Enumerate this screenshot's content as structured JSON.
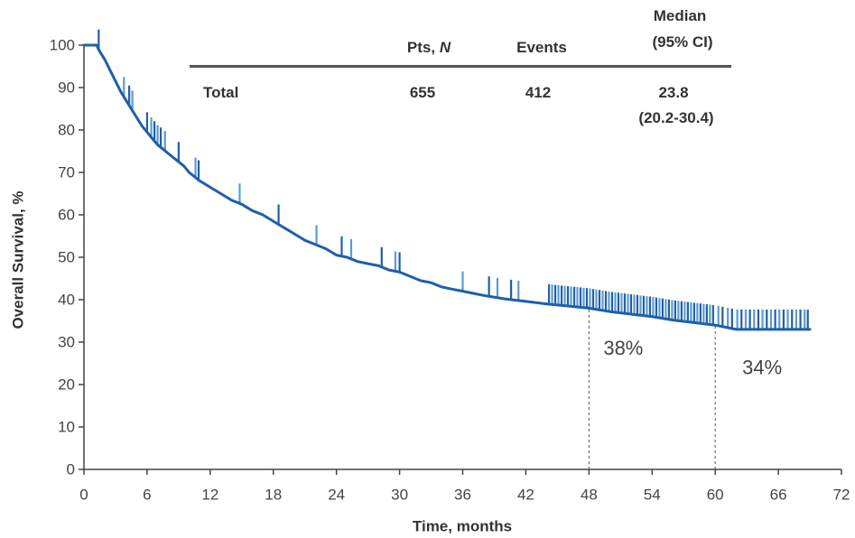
{
  "chart_data": {
    "type": "line",
    "xlabel": "Time, months",
    "ylabel": "Overall Survival, %",
    "xlim": [
      0,
      72
    ],
    "ylim": [
      0,
      100
    ],
    "xticks": [
      0,
      6,
      12,
      18,
      24,
      30,
      36,
      42,
      48,
      54,
      60,
      66,
      72
    ],
    "yticks": [
      0,
      10,
      20,
      30,
      40,
      50,
      60,
      70,
      80,
      90,
      100
    ],
    "grid": false,
    "series": [
      {
        "color": "#1f5fa8",
        "censor_colors": [
          "#1f5fa8",
          "#5b9bd5"
        ],
        "x": [
          0,
          1.2,
          1.5,
          2,
          2.5,
          3,
          3.5,
          4,
          4.5,
          5,
          5.5,
          6,
          6.5,
          7,
          7.5,
          8,
          8.5,
          9,
          9.5,
          10,
          10.5,
          11,
          12,
          13,
          14,
          15,
          16,
          17,
          18,
          19,
          20,
          21,
          22,
          23,
          24,
          25,
          26,
          27,
          28,
          29,
          30,
          31,
          32,
          33,
          34,
          35,
          36,
          38,
          40,
          42,
          44,
          46,
          48,
          50,
          52,
          54,
          56,
          58,
          60,
          61,
          62,
          64,
          66,
          68,
          69
        ],
        "y": [
          100,
          100,
          98.5,
          96.5,
          94,
          91.5,
          89,
          87,
          85,
          83,
          81,
          79.5,
          78,
          76.5,
          75.5,
          74.5,
          73.5,
          72.5,
          71.5,
          70,
          69,
          68,
          66.5,
          65,
          63.5,
          62.5,
          61,
          60,
          58.5,
          57,
          55.5,
          54,
          53,
          52,
          50.5,
          50,
          49,
          48.5,
          48,
          47,
          46.5,
          45.5,
          44.5,
          44,
          43,
          42.5,
          42,
          41,
          40.2,
          39.6,
          39,
          38.5,
          38,
          37.2,
          36.6,
          36,
          35.2,
          34.6,
          34,
          33.5,
          33,
          33,
          33,
          33,
          33
        ],
        "censor_times": [
          1.4,
          3.8,
          4.3,
          4.6,
          6.0,
          6.4,
          6.7,
          7.0,
          7.3,
          7.7,
          9.0,
          10.6,
          10.9,
          14.8,
          18.5,
          22.1,
          24.5,
          25.4,
          28.3,
          29.6,
          30.0,
          36.0,
          38.5,
          39.3,
          40.6,
          41.3,
          44.2,
          44.5,
          44.8,
          45.1,
          45.4,
          45.7,
          46.0,
          46.3,
          46.6,
          46.9,
          47.2,
          47.5,
          47.8,
          48.1,
          48.4,
          48.7,
          49.0,
          49.3,
          49.6,
          49.9,
          50.2,
          50.5,
          50.8,
          51.1,
          51.4,
          51.7,
          52.0,
          52.3,
          52.6,
          52.9,
          53.2,
          53.5,
          53.8,
          54.1,
          54.4,
          54.7,
          55.0,
          55.3,
          55.6,
          55.9,
          56.2,
          56.5,
          56.8,
          57.1,
          57.4,
          57.7,
          58.0,
          58.3,
          58.6,
          58.9,
          59.2,
          59.5,
          59.8,
          60.3,
          60.7,
          61.2,
          61.6,
          62.1,
          62.5,
          62.9,
          63.3,
          63.7,
          64.1,
          64.5,
          64.9,
          65.3,
          65.7,
          66.1,
          66.5,
          66.9,
          67.3,
          67.7,
          68.1,
          68.5,
          68.8
        ]
      }
    ],
    "annotations": [
      {
        "x": 48,
        "y": 38,
        "label": "38%"
      },
      {
        "x": 60,
        "y": 34,
        "label": "34%"
      }
    ],
    "inset_table": {
      "header": {
        "pts": "Pts,",
        "pts_n": "N",
        "events": "Events",
        "median_line1": "Median",
        "median_line2": "(95% CI)"
      },
      "rows": [
        {
          "label": "Total",
          "pts": 655,
          "events": 412,
          "median": 23.8,
          "ci": "(20.2-30.4)"
        }
      ]
    }
  }
}
